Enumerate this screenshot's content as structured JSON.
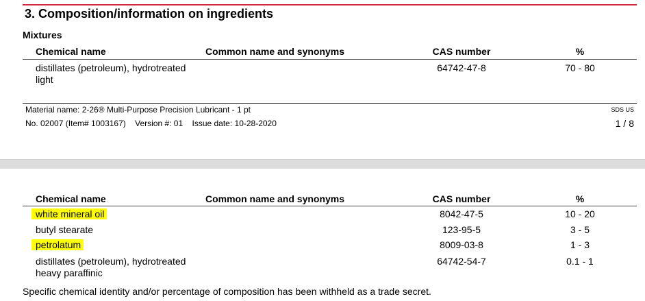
{
  "section_title": "3. Composition/information on ingredients",
  "subsection": "Mixtures",
  "columns": [
    "Chemical name",
    "Common name and synonyms",
    "CAS number",
    "%"
  ],
  "page1_rows": [
    {
      "name_line1": "distillates (petroleum), hydrotreated",
      "name_line2": "light",
      "common": "",
      "cas": "64742-47-8",
      "percent": "70 - 80"
    }
  ],
  "footer": {
    "material_name": "Material name: 2-26® Multi-Purpose Precision Lubricant - 1 pt",
    "doc_info": "No. 02007 (Item# 1003167)    Version #: 01    Issue date: 10-28-2020",
    "sds_label": "SDS US",
    "page": "1 / 8"
  },
  "page2_rows": [
    {
      "name": "white mineral oil",
      "cas": "8042-47-5",
      "percent": "10 - 20",
      "highlighted": true
    },
    {
      "name": "butyl stearate",
      "cas": "123-95-5",
      "percent": "3 - 5",
      "highlighted": false
    },
    {
      "name": "petrolatum",
      "cas": "8009-03-8",
      "percent": "1 - 3",
      "highlighted": true
    },
    {
      "name_line1": "distillates (petroleum), hydrotreated",
      "name_line2": "heavy paraffinic",
      "cas": "64742-54-7",
      "percent": "0.1 - 1",
      "highlighted": false
    }
  ],
  "note": "Specific chemical identity and/or percentage of composition has been withheld as a trade secret.",
  "colors": {
    "accent_line": "#d2263a",
    "highlight": "#ffff00",
    "page_gap": "#dcdcdc"
  }
}
